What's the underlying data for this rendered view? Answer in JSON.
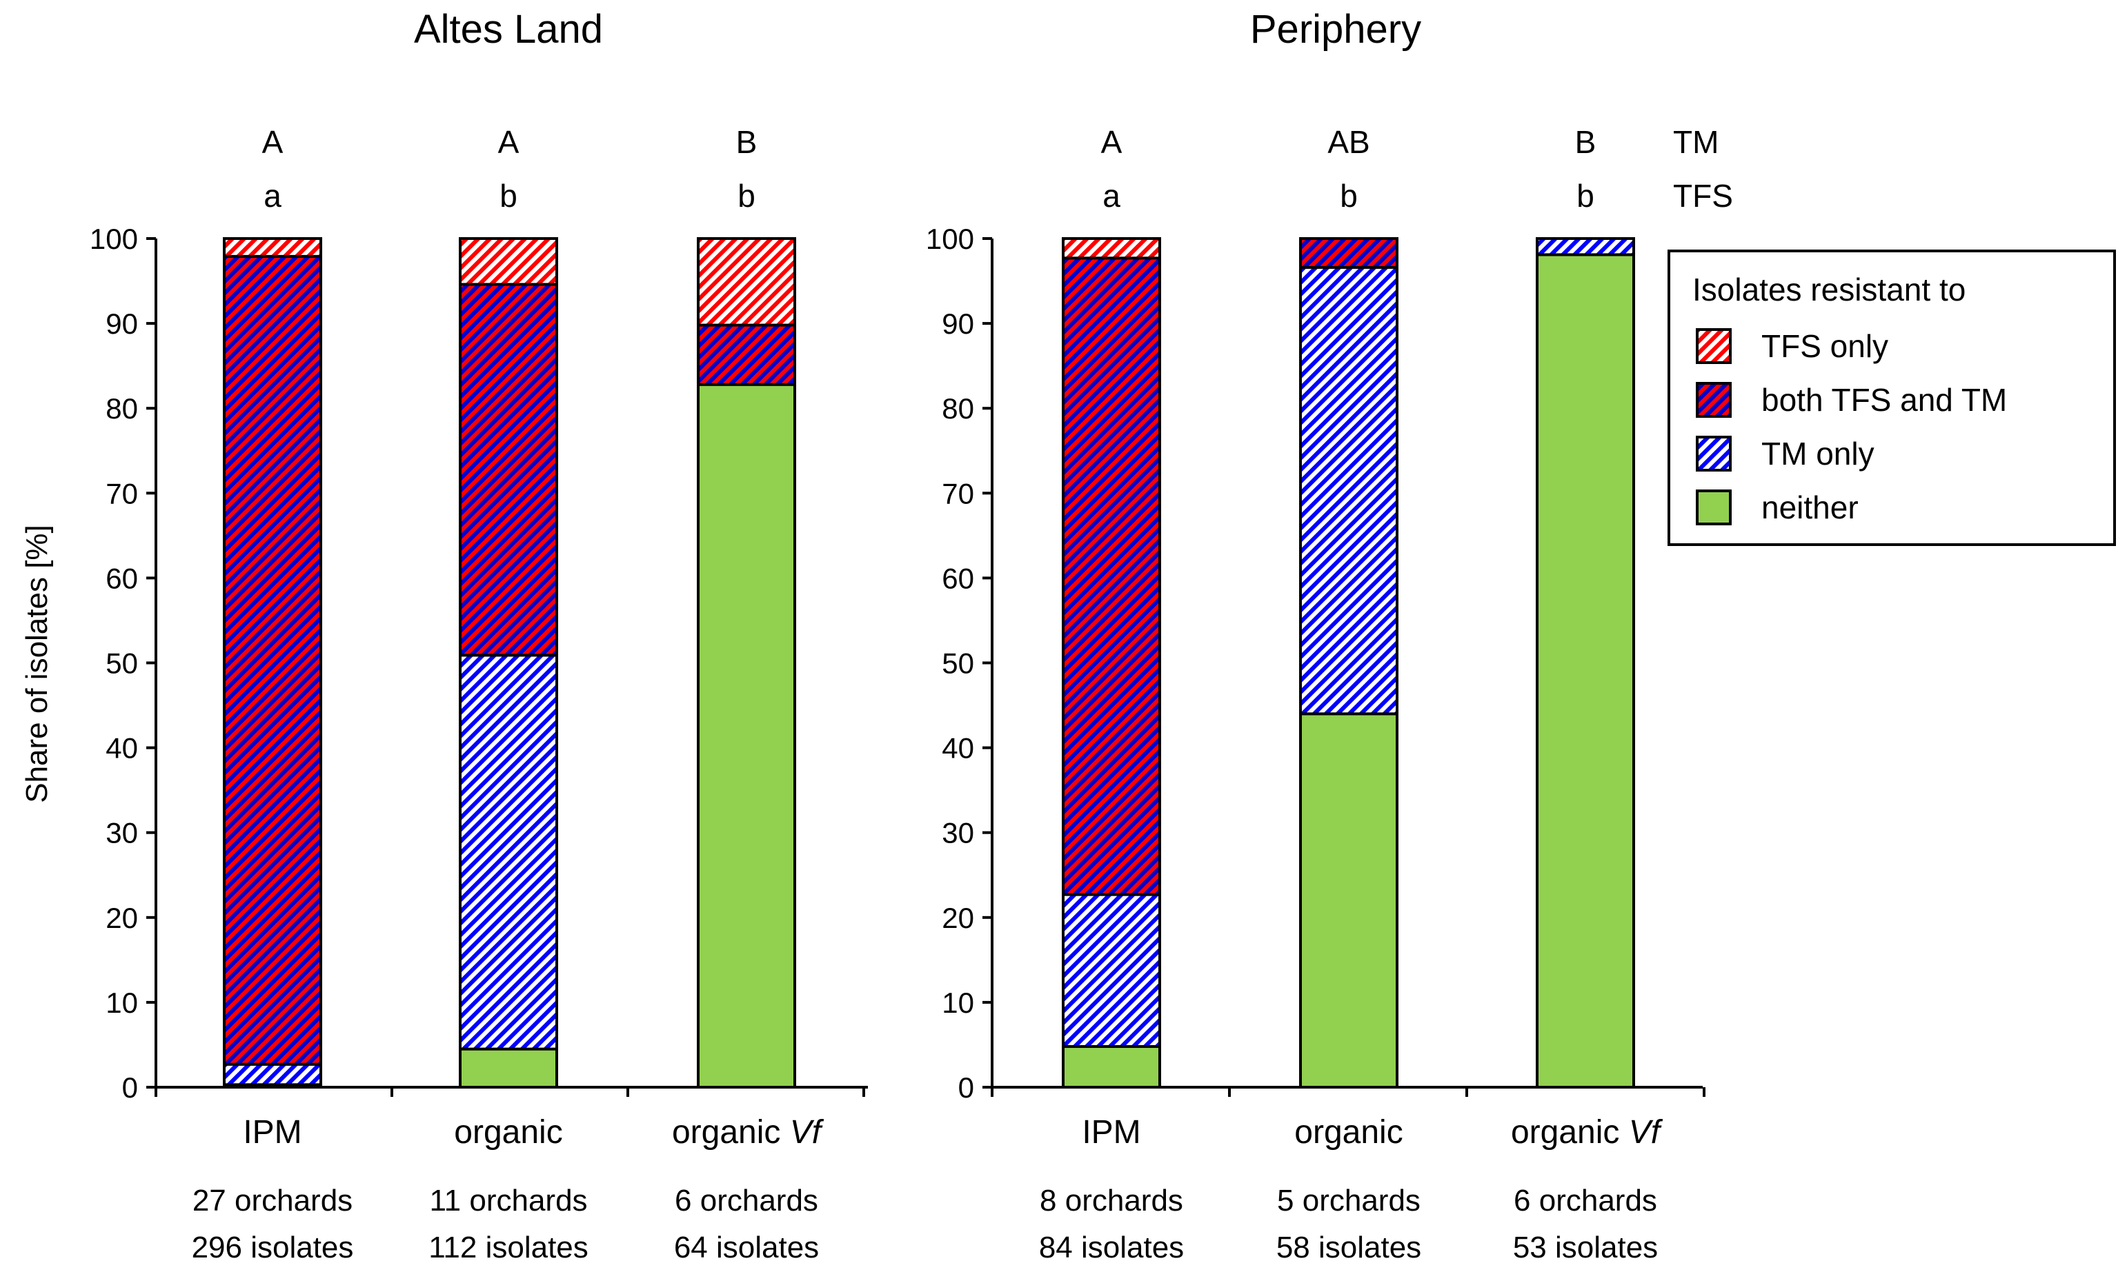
{
  "chart_data": [
    {
      "type": "bar",
      "stacked": true,
      "title": "Altes Land",
      "ylabel": "Share of isolates [%]",
      "ylim": [
        0,
        100
      ],
      "yticks": [
        "0",
        "10",
        "20",
        "30",
        "40",
        "50",
        "60",
        "70",
        "80",
        "90",
        "100"
      ],
      "categories": [
        {
          "name": "IPM",
          "italic": "",
          "orchards": "27 orchards",
          "isolates": "296 isolates",
          "TM": "A",
          "TFS": "a"
        },
        {
          "name": "organic",
          "italic": "",
          "orchards": "11 orchards",
          "isolates": "112 isolates",
          "TM": "A",
          "TFS": "b"
        },
        {
          "name": "organic ",
          "italic": "Vf",
          "orchards": "6 orchards",
          "isolates": "64 isolates",
          "TM": "B",
          "TFS": "b"
        }
      ],
      "series": [
        {
          "name": "neither",
          "values": [
            0.3,
            4.5,
            82.8
          ]
        },
        {
          "name": "TM only",
          "values": [
            2.4,
            46.4,
            0
          ]
        },
        {
          "name": "both TFS and TM",
          "values": [
            95.2,
            43.7,
            7.0
          ]
        },
        {
          "name": "TFS only",
          "values": [
            2.1,
            5.4,
            10.2
          ]
        }
      ]
    },
    {
      "type": "bar",
      "stacked": true,
      "title": "Periphery",
      "ylim": [
        0,
        100
      ],
      "yticks": [
        "0",
        "10",
        "20",
        "30",
        "40",
        "50",
        "60",
        "70",
        "80",
        "90",
        "100"
      ],
      "categories": [
        {
          "name": "IPM",
          "italic": "",
          "orchards": "8 orchards",
          "isolates": "84 isolates",
          "TM": "A",
          "TFS": "a"
        },
        {
          "name": "organic",
          "italic": "",
          "orchards": "5 orchards",
          "isolates": "58 isolates",
          "TM": "AB",
          "TFS": "b"
        },
        {
          "name": "organic ",
          "italic": "Vf",
          "orchards": "6 orchards",
          "isolates": "53 isolates",
          "TM": "B",
          "TFS": "b"
        }
      ],
      "series": [
        {
          "name": "neither",
          "values": [
            4.8,
            44.0,
            98.1
          ]
        },
        {
          "name": "TM only",
          "values": [
            17.9,
            52.6,
            1.9
          ]
        },
        {
          "name": "both TFS and TM",
          "values": [
            75.0,
            3.4,
            0
          ]
        },
        {
          "name": "TFS only",
          "values": [
            2.3,
            0,
            0
          ]
        }
      ]
    }
  ],
  "row_labels": {
    "tm": "TM",
    "tfs": "TFS"
  },
  "legend": {
    "title": "Isolates resistant to",
    "placement": "right",
    "items": [
      {
        "label": "TFS only",
        "key": "tfs"
      },
      {
        "label": "both TFS and TM",
        "key": "both"
      },
      {
        "label": " TM only",
        "key": "tm"
      },
      {
        "label": "neither",
        "key": "neither"
      }
    ]
  },
  "colors": {
    "green": "#92D050",
    "red": "#FF0000",
    "blue": "#0000FF"
  }
}
